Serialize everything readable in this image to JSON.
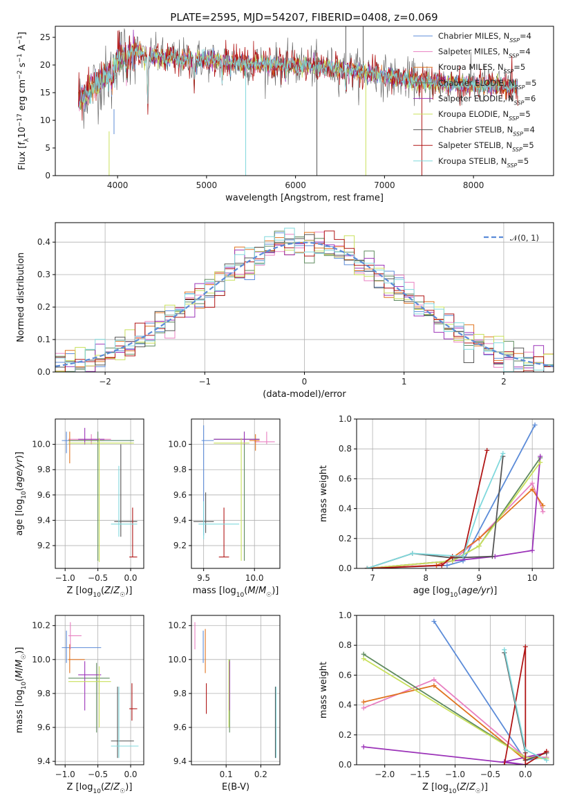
{
  "page": {
    "title": "PLATE=2595, MJD=54207, FIBERID=0408, z=0.069"
  },
  "models": [
    {
      "name": "Chabrier MILES",
      "nssp": "4",
      "color": "#5b8bd8"
    },
    {
      "name": "Salpeter MILES",
      "nssp": "4",
      "color": "#e87fc0"
    },
    {
      "name": "Kroupa MILES",
      "nssp": "5",
      "color": "#e0731f"
    },
    {
      "name": "Chabrier ELODIE",
      "nssp": "5",
      "color": "#5e8a5e"
    },
    {
      "name": "Salpeter ELODIE",
      "nssp": "6",
      "color": "#9b32b8"
    },
    {
      "name": "Kroupa ELODIE",
      "nssp": "5",
      "color": "#c8e05a"
    },
    {
      "name": "Chabrier STELIB",
      "nssp": "4",
      "color": "#555555"
    },
    {
      "name": "Salpeter STELIB",
      "nssp": "5",
      "color": "#b01515"
    },
    {
      "name": "Kroupa STELIB",
      "nssp": "5",
      "color": "#7fd8dc"
    }
  ],
  "chart_data": [
    {
      "id": "spectrum",
      "type": "line",
      "title": "PLATE=2595, MJD=54207, FIBERID=0408, z=0.069",
      "xlabel": "wavelength [Angstrom, rest frame]",
      "ylabel": "Flux [f_λ 10^-17 erg cm^-2 s^-1 A^-1]",
      "xlim": [
        3300,
        8900
      ],
      "ylim": [
        0,
        27
      ],
      "xticks": [
        4000,
        5000,
        6000,
        7000,
        8000
      ],
      "yticks": [
        0,
        5,
        10,
        15,
        20,
        25
      ],
      "grid": false,
      "legend": "top-right",
      "continuum": {
        "x": [
          3560,
          3700,
          3900,
          4000,
          4200,
          4500,
          5000,
          5500,
          6000,
          6500,
          7000,
          7500,
          8000,
          8500
        ],
        "y": [
          13.2,
          16.0,
          18.0,
          21.5,
          22.5,
          21.2,
          21.0,
          20.2,
          20.0,
          19.4,
          18.0,
          16.8,
          16.4,
          16.0
        ]
      },
      "absorption_lines": [
        {
          "x": 3934,
          "depth": 2.5
        },
        {
          "x": 3969,
          "depth": 2.0
        },
        {
          "x": 4102,
          "depth": 3.5
        },
        {
          "x": 4304,
          "depth": 2.0
        },
        {
          "x": 4340,
          "depth": 9.0
        },
        {
          "x": 4861,
          "depth": 4.0
        },
        {
          "x": 5175,
          "depth": 2.5
        },
        {
          "x": 5270,
          "depth": 1.5
        },
        {
          "x": 5890,
          "depth": 2.0
        },
        {
          "x": 6563,
          "depth": 3.0
        },
        {
          "x": 8500,
          "depth": 2.0
        },
        {
          "x": 8542,
          "depth": 3.0
        },
        {
          "x": 8662,
          "depth": 2.5
        }
      ],
      "spikes": [
        {
          "x": 3905,
          "from": 8,
          "to": 0,
          "series": 5
        },
        {
          "x": 3960,
          "from": 12,
          "to": 7.5,
          "series": 0
        },
        {
          "x": 5440,
          "from": 21,
          "to": 0,
          "series": 8
        },
        {
          "x": 6240,
          "from": 20,
          "to": 0,
          "series": 6
        },
        {
          "x": 6565,
          "from": 20,
          "to": 27,
          "series": 6
        },
        {
          "x": 6760,
          "from": 20,
          "to": 27,
          "series": 6
        },
        {
          "x": 6790,
          "from": 19,
          "to": 0,
          "series": 5
        },
        {
          "x": 7420,
          "from": 17,
          "to": 0,
          "series": 7
        }
      ]
    },
    {
      "id": "residuals",
      "type": "histogram",
      "xlabel": "(data-model)/error",
      "ylabel": "Normed distribution",
      "xlim": [
        -2.5,
        2.5
      ],
      "ylim": [
        0,
        0.46
      ],
      "xticks": [
        -2,
        -1,
        0,
        1,
        2
      ],
      "yticks": [
        0.0,
        0.1,
        0.2,
        0.3,
        0.4
      ],
      "grid": true,
      "bins": 50,
      "reference_curve": {
        "name": "𝒩(0, 1)",
        "mean": 0,
        "sigma": 1,
        "color": "#5b8bd8"
      }
    },
    {
      "id": "age-vs-Z",
      "type": "errorbar",
      "xlabel": "Z [log10(Z/Z☉)]",
      "ylabel": "age [log10(age/yr)]",
      "xlim": [
        -1.15,
        0.2
      ],
      "ylim": [
        9.02,
        10.2
      ],
      "xticks": [
        -1.0,
        -0.5,
        0.0
      ],
      "yticks": [
        9.2,
        9.4,
        9.6,
        9.8,
        10.0
      ],
      "grid": true,
      "points": [
        {
          "x": -0.98,
          "xlo": -1.05,
          "xhi": 0.05,
          "y": 10.03,
          "ylo": 9.93,
          "yhi": 10.1,
          "series": 0
        },
        {
          "x": -0.6,
          "xlo": -0.95,
          "xhi": -0.3,
          "y": 10.04,
          "ylo": 10.0,
          "yhi": 10.08,
          "series": 1
        },
        {
          "x": -0.93,
          "xlo": -0.95,
          "xhi": -0.4,
          "y": 10.03,
          "ylo": 9.85,
          "yhi": 10.1,
          "series": 2
        },
        {
          "x": -0.5,
          "xlo": -0.95,
          "xhi": 0.05,
          "y": 10.03,
          "ylo": 9.08,
          "yhi": 10.1,
          "series": 3
        },
        {
          "x": -0.7,
          "xlo": -0.8,
          "xhi": -0.4,
          "y": 10.04,
          "ylo": 10.0,
          "yhi": 10.13,
          "series": 4
        },
        {
          "x": -0.48,
          "xlo": -0.95,
          "xhi": 0.05,
          "y": 10.01,
          "ylo": 9.07,
          "yhi": 10.05,
          "series": 5
        },
        {
          "x": -0.15,
          "xlo": -0.25,
          "xhi": 0.1,
          "y": 9.39,
          "ylo": 9.27,
          "yhi": 10.0,
          "series": 6
        },
        {
          "x": 0.03,
          "xlo": -0.02,
          "xhi": 0.1,
          "y": 9.11,
          "ylo": 9.11,
          "yhi": 9.5,
          "series": 7
        },
        {
          "x": -0.18,
          "xlo": -0.3,
          "xhi": 0.1,
          "y": 9.37,
          "ylo": 9.27,
          "yhi": 9.83,
          "series": 8
        }
      ]
    },
    {
      "id": "age-vs-mass",
      "type": "errorbar",
      "xlabel": "mass [log10(M/M☉)]",
      "ylabel": "",
      "xlim": [
        9.38,
        10.25
      ],
      "ylim": [
        9.02,
        10.2
      ],
      "xticks": [
        9.5,
        10.0
      ],
      "yticks": [
        9.2,
        9.4,
        9.6,
        9.8,
        10.0
      ],
      "grid": true,
      "points": [
        {
          "x": 9.5,
          "xlo": 9.48,
          "xhi": 9.6,
          "y": 10.03,
          "ylo": 9.28,
          "yhi": 10.15,
          "series": 0
        },
        {
          "x": 10.12,
          "xlo": 10.0,
          "xhi": 10.2,
          "y": 10.02,
          "ylo": 10.0,
          "yhi": 10.1,
          "series": 1
        },
        {
          "x": 10.01,
          "xlo": 9.95,
          "xhi": 10.05,
          "y": 10.03,
          "ylo": 9.95,
          "yhi": 10.08,
          "series": 2
        },
        {
          "x": 9.9,
          "xlo": 9.6,
          "xhi": 10.05,
          "y": 10.04,
          "ylo": 9.08,
          "yhi": 10.1,
          "series": 3
        },
        {
          "x": 9.9,
          "xlo": 9.6,
          "xhi": 10.05,
          "y": 10.04,
          "ylo": 10.0,
          "yhi": 10.1,
          "series": 4
        },
        {
          "x": 9.87,
          "xlo": 9.6,
          "xhi": 9.95,
          "y": 10.01,
          "ylo": 9.08,
          "yhi": 10.05,
          "series": 5
        },
        {
          "x": 9.52,
          "xlo": 9.4,
          "xhi": 9.6,
          "y": 9.39,
          "ylo": 9.3,
          "yhi": 9.62,
          "series": 6
        },
        {
          "x": 9.7,
          "xlo": 9.65,
          "xhi": 9.75,
          "y": 9.11,
          "ylo": 9.11,
          "yhi": 9.5,
          "series": 7
        },
        {
          "x": 9.5,
          "xlo": 9.45,
          "xhi": 9.85,
          "y": 9.37,
          "ylo": 9.25,
          "yhi": 9.55,
          "series": 8
        }
      ]
    },
    {
      "id": "mass-weight-vs-age",
      "type": "line",
      "xlabel": "age [log10(age/yr)]",
      "ylabel": "mass weight",
      "xlim": [
        6.7,
        10.4
      ],
      "ylim": [
        0,
        1.0
      ],
      "xticks": [
        7,
        8,
        9,
        10
      ],
      "yticks": [
        0.0,
        0.2,
        0.4,
        0.6,
        0.8,
        1.0
      ],
      "grid": true,
      "series": [
        {
          "series": 0,
          "x": [
            6.9,
            8.4,
            8.7,
            10.05
          ],
          "y": [
            0.0,
            0.02,
            0.05,
            0.96
          ]
        },
        {
          "series": 1,
          "x": [
            6.9,
            8.2,
            8.5,
            9.0,
            10.0,
            10.2
          ],
          "y": [
            0.0,
            0.02,
            0.05,
            0.2,
            0.57,
            0.38
          ]
        },
        {
          "series": 2,
          "x": [
            6.9,
            8.2,
            8.5,
            9.0,
            10.0,
            10.2
          ],
          "y": [
            0.0,
            0.02,
            0.07,
            0.2,
            0.53,
            0.42
          ]
        },
        {
          "series": 3,
          "x": [
            6.9,
            8.5,
            9.0,
            10.15
          ],
          "y": [
            0.0,
            0.05,
            0.15,
            0.74
          ]
        },
        {
          "series": 4,
          "x": [
            6.9,
            8.5,
            9.3,
            10.0,
            10.15
          ],
          "y": [
            0.0,
            0.05,
            0.08,
            0.12,
            0.75
          ]
        },
        {
          "series": 5,
          "x": [
            6.9,
            8.5,
            9.0,
            10.15
          ],
          "y": [
            0.0,
            0.05,
            0.15,
            0.71
          ]
        },
        {
          "series": 6,
          "x": [
            6.9,
            7.75,
            8.5,
            9.25,
            9.45
          ],
          "y": [
            0.0,
            0.1,
            0.07,
            0.08,
            0.75
          ]
        },
        {
          "series": 7,
          "x": [
            6.9,
            8.3,
            8.5,
            8.7,
            9.15
          ],
          "y": [
            0.0,
            0.02,
            0.08,
            0.08,
            0.79
          ]
        },
        {
          "series": 8,
          "x": [
            6.9,
            7.75,
            8.7,
            9.0,
            9.45
          ],
          "y": [
            0.0,
            0.1,
            0.08,
            0.4,
            0.77
          ]
        }
      ]
    },
    {
      "id": "mass-vs-Z",
      "type": "errorbar",
      "xlabel": "Z [log10(Z/Z☉)]",
      "ylabel": "mass [log10(M/M☉)]",
      "xlim": [
        -1.15,
        0.2
      ],
      "ylim": [
        9.38,
        10.26
      ],
      "xticks": [
        -1.0,
        -0.5,
        0.0
      ],
      "yticks": [
        9.4,
        9.6,
        9.8,
        10.0,
        10.2
      ],
      "grid": true,
      "points": [
        {
          "x": -0.98,
          "xlo": -1.05,
          "xhi": -0.45,
          "y": 10.07,
          "ylo": 9.98,
          "yhi": 10.17,
          "series": 0
        },
        {
          "x": -0.92,
          "xlo": -0.95,
          "xhi": -0.75,
          "y": 10.14,
          "ylo": 10.06,
          "yhi": 10.22,
          "series": 1
        },
        {
          "x": -0.93,
          "xlo": -0.95,
          "xhi": -0.7,
          "y": 10.0,
          "ylo": 9.92,
          "yhi": 10.09,
          "series": 2
        },
        {
          "x": -0.52,
          "xlo": -0.95,
          "xhi": -0.32,
          "y": 9.89,
          "ylo": 9.57,
          "yhi": 9.98,
          "series": 3
        },
        {
          "x": -0.7,
          "xlo": -0.8,
          "xhi": -0.45,
          "y": 9.91,
          "ylo": 9.7,
          "yhi": 9.99,
          "series": 4
        },
        {
          "x": -0.48,
          "xlo": -0.95,
          "xhi": -0.3,
          "y": 9.87,
          "ylo": 9.6,
          "yhi": 9.96,
          "series": 5
        },
        {
          "x": -0.2,
          "xlo": -0.3,
          "xhi": 0.05,
          "y": 9.52,
          "ylo": 9.42,
          "yhi": 9.84,
          "series": 6
        },
        {
          "x": 0.02,
          "xlo": -0.02,
          "xhi": 0.1,
          "y": 9.71,
          "ylo": 9.64,
          "yhi": 9.86,
          "series": 7
        },
        {
          "x": -0.18,
          "xlo": -0.3,
          "xhi": 0.12,
          "y": 9.49,
          "ylo": 9.42,
          "yhi": 9.84,
          "series": 8
        }
      ]
    },
    {
      "id": "mass-vs-ebv",
      "type": "errorbar",
      "xlabel": "E(B-V)",
      "ylabel": "",
      "xlim": [
        0.0,
        0.255
      ],
      "ylim": [
        9.38,
        10.26
      ],
      "xticks": [
        0.1,
        0.2
      ],
      "yticks": [
        9.4,
        9.6,
        9.8,
        10.0,
        10.2
      ],
      "grid": true,
      "points": [
        {
          "x": 0.034,
          "y": 10.07,
          "ylo": 9.98,
          "yhi": 10.17,
          "series": 0
        },
        {
          "x": 0.01,
          "y": 10.14,
          "ylo": 10.06,
          "yhi": 10.22,
          "series": 1
        },
        {
          "x": 0.04,
          "y": 10.0,
          "ylo": 9.92,
          "yhi": 10.18,
          "series": 2
        },
        {
          "x": 0.11,
          "y": 9.89,
          "ylo": 9.57,
          "yhi": 10.0,
          "series": 3
        },
        {
          "x": 0.11,
          "y": 9.91,
          "ylo": 9.7,
          "yhi": 9.99,
          "series": 4
        },
        {
          "x": 0.108,
          "y": 9.87,
          "ylo": 9.6,
          "yhi": 10.0,
          "series": 5
        },
        {
          "x": 0.242,
          "y": 9.52,
          "ylo": 9.42,
          "yhi": 9.84,
          "series": 6
        },
        {
          "x": 0.043,
          "y": 9.71,
          "ylo": 9.68,
          "yhi": 9.86,
          "series": 7
        },
        {
          "x": 0.244,
          "y": 9.49,
          "ylo": 9.42,
          "yhi": 9.84,
          "series": 8
        }
      ]
    },
    {
      "id": "mass-weight-vs-Z",
      "type": "line",
      "xlabel": "Z [log10(Z/Z☉)]",
      "ylabel": "mass weight",
      "xlim": [
        -2.4,
        0.4
      ],
      "ylim": [
        0,
        1.0
      ],
      "xticks": [
        -2.0,
        -1.5,
        -1.0,
        -0.5,
        0.0
      ],
      "yticks": [
        0.0,
        0.2,
        0.4,
        0.6,
        0.8,
        1.0
      ],
      "grid": true,
      "series": [
        {
          "series": 0,
          "x": [
            -1.3,
            0.0,
            0.3
          ],
          "y": [
            0.96,
            0.03,
            0.05
          ]
        },
        {
          "series": 1,
          "x": [
            -2.3,
            -1.3,
            0.0,
            0.3
          ],
          "y": [
            0.38,
            0.57,
            0.05,
            0.05
          ]
        },
        {
          "series": 2,
          "x": [
            -2.3,
            -1.3,
            0.0,
            0.3
          ],
          "y": [
            0.42,
            0.53,
            0.03,
            0.08
          ]
        },
        {
          "series": 3,
          "x": [
            -2.3,
            0.0,
            0.3
          ],
          "y": [
            0.74,
            0.05,
            0.04
          ]
        },
        {
          "series": 4,
          "x": [
            -2.3,
            0.0,
            -0.3,
            0.3
          ],
          "y": [
            0.12,
            0.0,
            0.02,
            0.08
          ]
        },
        {
          "series": 5,
          "x": [
            -2.3,
            0.0,
            0.3
          ],
          "y": [
            0.71,
            0.05,
            0.04
          ]
        },
        {
          "series": 6,
          "x": [
            -0.3,
            0.0,
            0.0,
            0.3
          ],
          "y": [
            0.75,
            0.08,
            0.03,
            0.08
          ]
        },
        {
          "series": 7,
          "x": [
            -0.3,
            0.0,
            0.0,
            0.3
          ],
          "y": [
            0.0,
            0.79,
            0.0,
            0.09
          ]
        },
        {
          "series": 8,
          "x": [
            -0.3,
            0.0,
            0.3
          ],
          "y": [
            0.77,
            0.1,
            0.03
          ]
        }
      ]
    }
  ]
}
